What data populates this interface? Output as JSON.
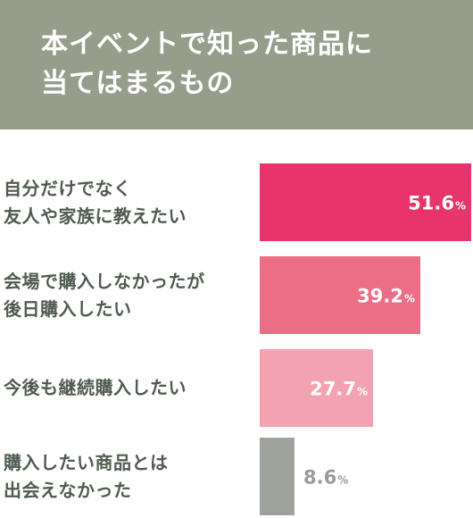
{
  "header": {
    "title_lines": [
      "本イベントで知った商品に",
      "当てはまるもの"
    ]
  },
  "colors": {
    "header_bg": "#969e8b",
    "label_text": "#4f5b4e",
    "value_text_light": "#ffffff",
    "value_text_dark": "#9a9a9a"
  },
  "chart_data": {
    "type": "bar",
    "orientation": "horizontal",
    "unit": "%",
    "xlim": [
      0,
      51.6
    ],
    "categories": [
      [
        "自分だけでなく",
        "友人や家族に教えたい"
      ],
      [
        "会場で購入しなかったが",
        "後日購入したい"
      ],
      [
        "今後も継続購入したい"
      ],
      [
        "購入したい商品とは",
        "出会えなかった"
      ]
    ],
    "values": [
      51.6,
      39.2,
      27.7,
      8.6
    ],
    "value_labels": [
      "51.6",
      "39.2",
      "27.7",
      "8.6"
    ],
    "bar_colors": [
      "#e8346a",
      "#ec6d86",
      "#f2a2b1",
      "#9da39b"
    ],
    "grid": false,
    "legend": "none"
  }
}
